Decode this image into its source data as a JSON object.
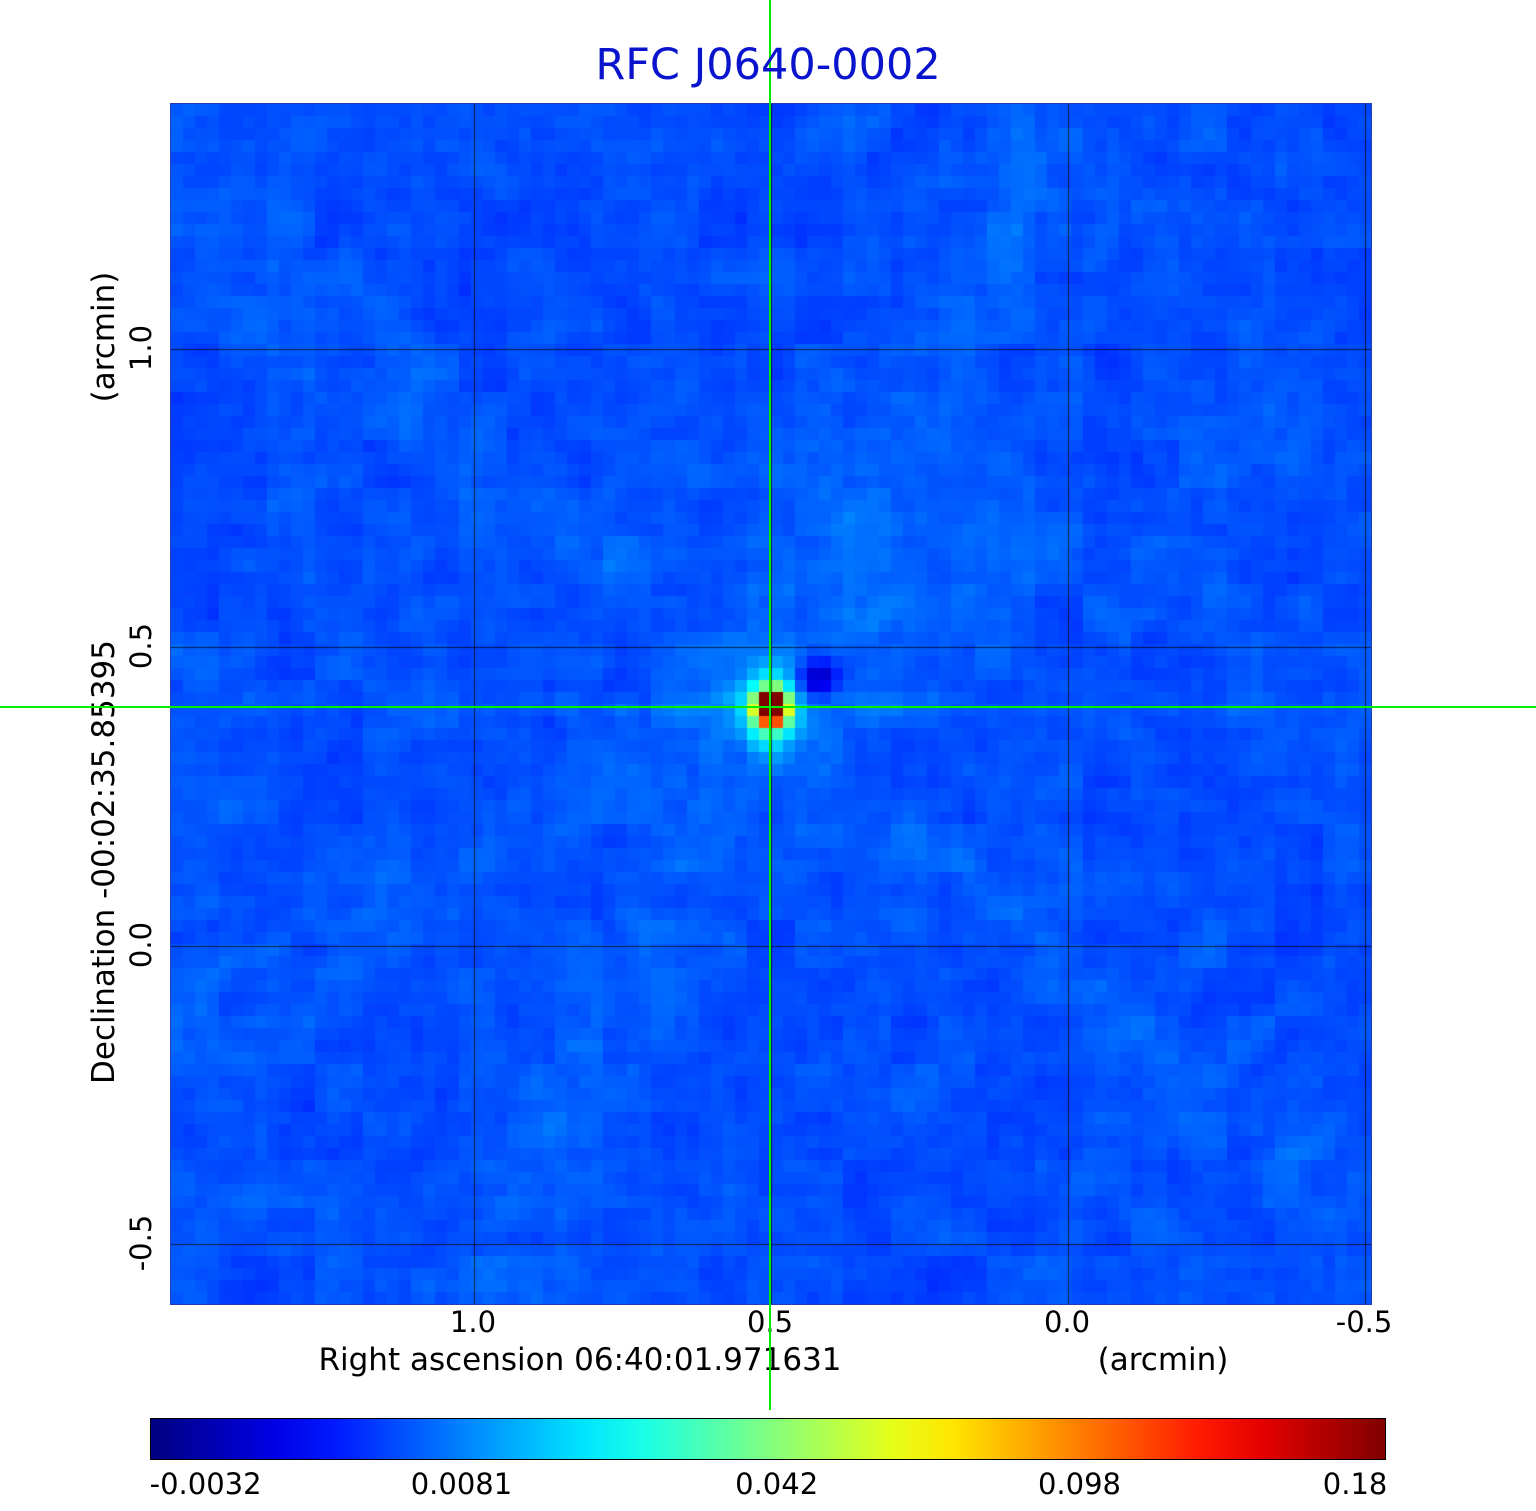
{
  "colors": {
    "title": "#0a14cc",
    "crosshair": "#00ee00",
    "grid": "#000000",
    "plot_border": "#2a3db0",
    "background": "#ffffff"
  },
  "chart_data": {
    "type": "heatmap",
    "title": "RFC J0640-0002",
    "xlabel": "Right ascension  06:40:01.971631",
    "xunit": "(arcmin)",
    "ylabel": "Declination  -00:02:35.85395",
    "yunit": "(arcmin)",
    "x_ticks": {
      "labels": [
        "1.0",
        "0.5",
        "0.0",
        "-0.5"
      ],
      "values": [
        1.0,
        0.5,
        0.0,
        -0.5
      ]
    },
    "y_ticks": {
      "labels": [
        "1.0",
        "0.5",
        "0.0",
        "-0.5"
      ],
      "values": [
        1.0,
        0.5,
        0.0,
        -0.5
      ]
    },
    "x_range": [
      1.51,
      -0.51
    ],
    "y_range": [
      1.41,
      -0.6
    ],
    "colormap": "jet",
    "colorbar": {
      "labels": [
        "-0.0032",
        "0.0081",
        "0.042",
        "0.098",
        "0.18"
      ],
      "values": [
        -0.0032,
        0.0081,
        0.042,
        0.098,
        0.18
      ],
      "positions": [
        0.045,
        0.252,
        0.507,
        0.752,
        0.975
      ]
    },
    "peak": {
      "ra_offset_arcmin": 0.5,
      "dec_offset_arcmin": 0.398,
      "value": 0.18
    },
    "background_level": 0.0,
    "crosshair": {
      "x_arcmin": 0.5,
      "y_arcmin": 0.398
    },
    "grid": "on",
    "legend": "colorbar-bottom"
  }
}
